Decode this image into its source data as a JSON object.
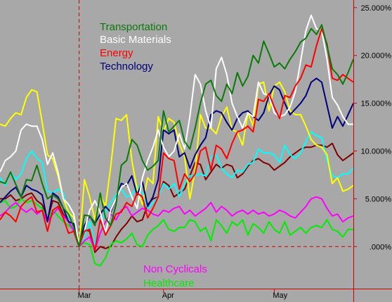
{
  "chart_data": {
    "type": "line",
    "title": "",
    "xlabel": "",
    "ylabel": "",
    "x_tick_labels": [
      "Mar",
      "Apr",
      "May"
    ],
    "y_tick_labels": [
      ".000%",
      "5.000%",
      "10.000%",
      "15.000%",
      "20.000%",
      "25.000%"
    ],
    "y_ticks": [
      0,
      5,
      10,
      15,
      20,
      25
    ],
    "ylim": [
      -4.4,
      25.8
    ],
    "x_count": 68,
    "x_tick_index": [
      15,
      31,
      52
    ],
    "reference_index": 15,
    "grid": false,
    "legend_placement": "top-center and bottom-center",
    "colors": {
      "background": "#a8a8a8",
      "axis": "#cc0000",
      "reference": "#cc0000"
    },
    "series": [
      {
        "name": "Transportation",
        "color": "#0a7a0a",
        "values": [
          6.8,
          6.6,
          7.8,
          6.5,
          5.2,
          7.0,
          6.9,
          8.5,
          6.6,
          5.0,
          5.4,
          5.0,
          4.0,
          3.4,
          2.0,
          0.0,
          3.3,
          3.2,
          2.2,
          5.6,
          3.0,
          2.2,
          4.4,
          8.5,
          9.0,
          11.2,
          10.6,
          9.0,
          8.0,
          8.4,
          9.0,
          14.2,
          12.0,
          12.6,
          13.2,
          11.0,
          10.2,
          12.4,
          15.0,
          17.0,
          17.4,
          15.8,
          15.2,
          17.0,
          16.0,
          18.2,
          16.8,
          17.8,
          20.0,
          19.2,
          21.5,
          20.2,
          18.8,
          19.2,
          18.6,
          19.6,
          20.4,
          21.4,
          21.8,
          22.8,
          22.2,
          23.2,
          21.0,
          18.6,
          18.0,
          17.0,
          18.2,
          19.6
        ],
        "legend_placement": "top"
      },
      {
        "name": "Basic Materials",
        "color": "#ffffff",
        "values": [
          7.8,
          9.0,
          9.4,
          10.0,
          12.2,
          12.8,
          12.6,
          12.6,
          11.2,
          8.6,
          9.8,
          7.8,
          5.0,
          4.4,
          3.4,
          0.0,
          1.6,
          3.8,
          4.8,
          3.6,
          1.4,
          3.8,
          5.0,
          6.2,
          6.6,
          5.2,
          4.0,
          7.2,
          9.0,
          10.4,
          12.2,
          10.4,
          9.4,
          10.0,
          11.8,
          10.2,
          13.6,
          18.0,
          17.0,
          14.2,
          12.4,
          18.6,
          19.8,
          18.0,
          15.0,
          13.6,
          12.4,
          14.0,
          13.6,
          17.2,
          16.0,
          15.8,
          14.0,
          13.6,
          13.8,
          14.6,
          16.2,
          19.4,
          22.6,
          24.2,
          22.8,
          22.6,
          19.6,
          15.6,
          14.8,
          13.6,
          12.8,
          12.8
        ],
        "legend_placement": "top"
      },
      {
        "name": "Energy",
        "color": "#ff0000",
        "values": [
          2.8,
          3.6,
          3.2,
          2.6,
          4.2,
          4.8,
          5.2,
          3.6,
          3.8,
          1.6,
          3.8,
          4.2,
          3.0,
          1.4,
          1.6,
          0.0,
          1.6,
          1.8,
          -0.4,
          2.8,
          1.2,
          2.2,
          3.4,
          3.6,
          4.6,
          4.2,
          5.6,
          5.2,
          3.0,
          4.0,
          5.2,
          9.8,
          9.2,
          9.0,
          6.0,
          7.6,
          6.8,
          7.6,
          10.0,
          10.4,
          8.0,
          10.6,
          10.2,
          9.2,
          10.8,
          12.0,
          12.2,
          12.6,
          12.0,
          15.4,
          15.2,
          16.0,
          14.6,
          13.4,
          15.8,
          15.6,
          16.8,
          17.6,
          19.0,
          18.8,
          21.0,
          22.8,
          21.2,
          17.6,
          17.4,
          18.0,
          17.6,
          17.2
        ],
        "legend_placement": "top"
      },
      {
        "name": "Technology",
        "color": "#00007a",
        "values": [
          4.6,
          5.2,
          5.8,
          6.2,
          5.2,
          6.4,
          6.0,
          5.8,
          5.4,
          2.6,
          5.6,
          5.2,
          4.0,
          2.6,
          2.4,
          0.0,
          2.2,
          3.2,
          2.4,
          3.4,
          4.2,
          3.6,
          5.0,
          6.6,
          6.4,
          7.4,
          5.4,
          6.8,
          4.2,
          5.2,
          7.0,
          12.2,
          11.8,
          12.2,
          9.4,
          9.8,
          8.2,
          9.6,
          10.6,
          11.4,
          13.8,
          14.2,
          14.0,
          13.0,
          12.2,
          13.4,
          14.0,
          14.2,
          13.6,
          13.2,
          14.0,
          15.8,
          16.8,
          16.4,
          15.0,
          13.8,
          14.4,
          15.0,
          15.8,
          17.2,
          17.6,
          17.2,
          14.8,
          12.4,
          13.6,
          12.6,
          13.8,
          15.0
        ],
        "legend_placement": "top"
      },
      {
        "name": "Non Cyclicals",
        "color": "#ff00ff",
        "values": [
          3.2,
          3.6,
          4.2,
          4.6,
          4.0,
          3.6,
          4.0,
          3.4,
          3.8,
          2.6,
          3.4,
          4.0,
          3.2,
          2.6,
          1.6,
          0.0,
          0.6,
          1.0,
          -0.4,
          1.4,
          2.6,
          3.4,
          2.8,
          3.8,
          4.2,
          3.2,
          3.6,
          4.0,
          3.8,
          3.4,
          3.2,
          3.8,
          3.6,
          4.0,
          4.2,
          3.4,
          3.8,
          3.2,
          3.6,
          4.0,
          4.6,
          3.6,
          4.2,
          3.8,
          3.2,
          3.6,
          3.8,
          3.4,
          3.8,
          3.4,
          3.6,
          3.2,
          3.4,
          3.8,
          3.6,
          3.2,
          3.0,
          3.6,
          4.2,
          5.0,
          5.2,
          5.0,
          4.0,
          3.2,
          3.4,
          2.6,
          3.0,
          3.2
        ],
        "legend_placement": "bottom"
      },
      {
        "name": "Healthcare",
        "color": "#00ee00",
        "values": [
          4.6,
          4.8,
          4.0,
          4.2,
          5.0,
          4.6,
          4.8,
          4.4,
          4.0,
          2.8,
          3.8,
          3.2,
          2.6,
          2.2,
          1.8,
          0.0,
          0.4,
          0.2,
          -1.8,
          -2.0,
          -1.2,
          0.2,
          0.6,
          0.4,
          0.8,
          1.4,
          0.2,
          0.0,
          1.2,
          1.8,
          2.2,
          2.8,
          1.8,
          1.6,
          2.0,
          2.0,
          2.8,
          2.6,
          1.6,
          2.0,
          0.6,
          2.8,
          2.2,
          1.4,
          2.6,
          2.2,
          2.8,
          1.2,
          2.4,
          2.0,
          1.4,
          2.6,
          1.8,
          1.4,
          2.6,
          1.2,
          1.6,
          2.0,
          1.4,
          2.0,
          2.2,
          2.0,
          2.8,
          1.8,
          1.6,
          1.0,
          1.8,
          1.8
        ],
        "legend_placement": "bottom"
      },
      {
        "name": "",
        "color": "#ffff00",
        "values": [
          12.8,
          12.6,
          13.4,
          14.0,
          13.8,
          15.6,
          16.4,
          16.2,
          13.0,
          9.6,
          9.2,
          7.4,
          5.0,
          3.6,
          3.0,
          0.0,
          7.0,
          5.2,
          2.8,
          5.4,
          4.2,
          8.4,
          13.4,
          13.2,
          13.8,
          9.0,
          6.0,
          4.4,
          7.2,
          6.6,
          13.6,
          12.0,
          13.4,
          13.0,
          10.8,
          9.4,
          5.0,
          8.0,
          13.8,
          12.4,
          12.4,
          11.8,
          13.6,
          14.6,
          12.2,
          12.0,
          10.6,
          14.0,
          12.6,
          17.0,
          17.2,
          14.2,
          16.8,
          17.2,
          16.2,
          14.2,
          13.8,
          13.8,
          12.6,
          11.2,
          10.6,
          10.4,
          9.6,
          6.6,
          7.2,
          5.8,
          6.0,
          6.4
        ]
      },
      {
        "name": "",
        "color": "#00ffff",
        "values": [
          7.2,
          6.4,
          7.8,
          7.0,
          7.6,
          9.2,
          10.0,
          9.2,
          8.8,
          5.8,
          5.6,
          6.0,
          5.6,
          3.2,
          2.0,
          0.0,
          1.0,
          2.6,
          0.2,
          2.4,
          3.6,
          4.6,
          5.4,
          6.0,
          5.2,
          5.4,
          6.4,
          5.6,
          4.0,
          4.6,
          5.2,
          6.6,
          6.0,
          6.6,
          5.2,
          6.6,
          7.4,
          7.4,
          7.6,
          7.4,
          9.4,
          9.6,
          8.2,
          7.6,
          7.2,
          8.0,
          7.8,
          8.6,
          8.8,
          10.2,
          9.8,
          9.8,
          9.6,
          8.8,
          10.6,
          9.6,
          9.2,
          9.8,
          11.0,
          12.0,
          11.6,
          11.4,
          9.0,
          7.4,
          7.2,
          7.6,
          7.6,
          8.2
        ]
      },
      {
        "name": "",
        "color": "#800000",
        "values": [
          5.0,
          5.0,
          5.4,
          4.8,
          5.0,
          5.4,
          5.6,
          4.8,
          4.4,
          2.8,
          4.8,
          4.6,
          3.4,
          2.6,
          1.6,
          0.0,
          1.8,
          1.6,
          -0.6,
          0.0,
          -0.2,
          0.0,
          1.0,
          1.8,
          2.4,
          3.2,
          2.6,
          2.8,
          4.4,
          5.0,
          5.2,
          6.8,
          6.4,
          5.2,
          5.6,
          6.0,
          7.4,
          8.8,
          8.6,
          7.0,
          7.8,
          8.6,
          8.2,
          8.6,
          8.4,
          7.2,
          7.6,
          8.4,
          9.0,
          9.2,
          8.8,
          8.6,
          8.0,
          8.4,
          8.8,
          9.4,
          9.8,
          10.2,
          10.4,
          10.4,
          10.6,
          10.6,
          10.4,
          10.8,
          9.6,
          9.0,
          9.4,
          9.8
        ]
      }
    ]
  }
}
